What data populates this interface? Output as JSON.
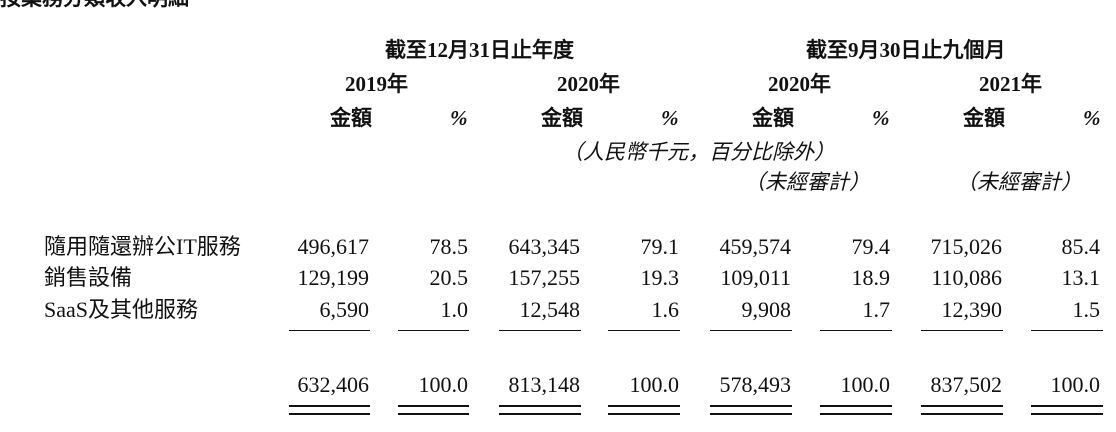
{
  "top_fragment": "按業務分類收入明細",
  "period_headers": {
    "annual": "截至12月31日止年度",
    "nine_months": "截至9月30日止九個月"
  },
  "year_headers": [
    "2019年",
    "2020年",
    "2020年",
    "2021年"
  ],
  "col_labels": {
    "amount": "金額",
    "percent": "%"
  },
  "unit_note": "（人民幣千元，百分比除外）",
  "unaudited_notes": [
    "（未經審計）",
    "（未經審計）"
  ],
  "rows": [
    {
      "label": "隨用隨還辦公IT服務",
      "values": [
        "496,617",
        "78.5",
        "643,345",
        "79.1",
        "459,574",
        "79.4",
        "715,026",
        "85.4"
      ]
    },
    {
      "label": "銷售設備",
      "values": [
        "129,199",
        "20.5",
        "157,255",
        "19.3",
        "109,011",
        "18.9",
        "110,086",
        "13.1"
      ]
    },
    {
      "label": "SaaS及其他服務",
      "values": [
        "6,590",
        "1.0",
        "12,548",
        "1.6",
        "9,908",
        "1.7",
        "12,390",
        "1.5"
      ]
    }
  ],
  "total_values": [
    "632,406",
    "100.0",
    "813,148",
    "100.0",
    "578,493",
    "100.0",
    "837,502",
    "100.0"
  ]
}
